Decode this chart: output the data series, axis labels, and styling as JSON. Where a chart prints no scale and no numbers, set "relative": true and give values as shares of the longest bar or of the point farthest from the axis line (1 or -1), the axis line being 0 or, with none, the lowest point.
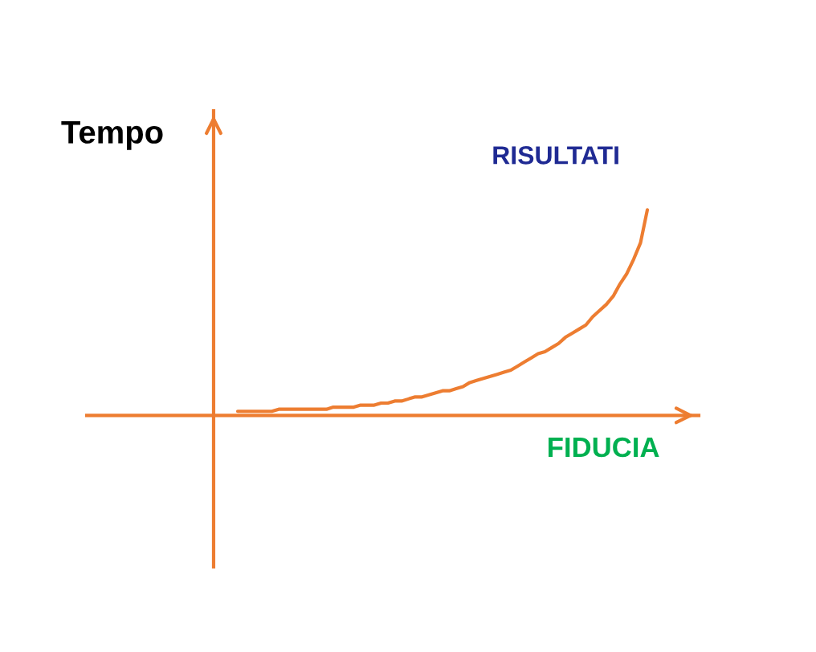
{
  "chart_data": {
    "type": "line",
    "relative": true,
    "xlabel": "FIDUCIA",
    "ylabel": "Tempo",
    "tick_labels": false,
    "categories": [
      null,
      null,
      null,
      null,
      null,
      null,
      null,
      null,
      null,
      null,
      null,
      null,
      null,
      null,
      null,
      null,
      null,
      null,
      null,
      null,
      null,
      null,
      null,
      null,
      null,
      null,
      null,
      null,
      null,
      null,
      null,
      null,
      null,
      null,
      null,
      null,
      null,
      null,
      null,
      null,
      null,
      null,
      null,
      null,
      null,
      null,
      null,
      null,
      null,
      null,
      null,
      null,
      null,
      null,
      null,
      null,
      null,
      null,
      null,
      null,
      null
    ],
    "series": [
      {
        "name": "RISULTATI",
        "color": "#ed7d31",
        "values": [
          0.02,
          0.02,
          0.02,
          0.02,
          0.02,
          0.02,
          0.03,
          0.03,
          0.03,
          0.03,
          0.03,
          0.03,
          0.03,
          0.03,
          0.04,
          0.04,
          0.04,
          0.04,
          0.05,
          0.05,
          0.05,
          0.06,
          0.06,
          0.07,
          0.07,
          0.08,
          0.09,
          0.09,
          0.1,
          0.11,
          0.12,
          0.12,
          0.13,
          0.14,
          0.16,
          0.17,
          0.18,
          0.19,
          0.2,
          0.21,
          0.22,
          0.24,
          0.26,
          0.28,
          0.3,
          0.31,
          0.33,
          0.35,
          0.38,
          0.4,
          0.42,
          0.44,
          0.48,
          0.51,
          0.54,
          0.58,
          0.64,
          0.69,
          0.76,
          0.84,
          1.0
        ]
      }
    ]
  }
}
